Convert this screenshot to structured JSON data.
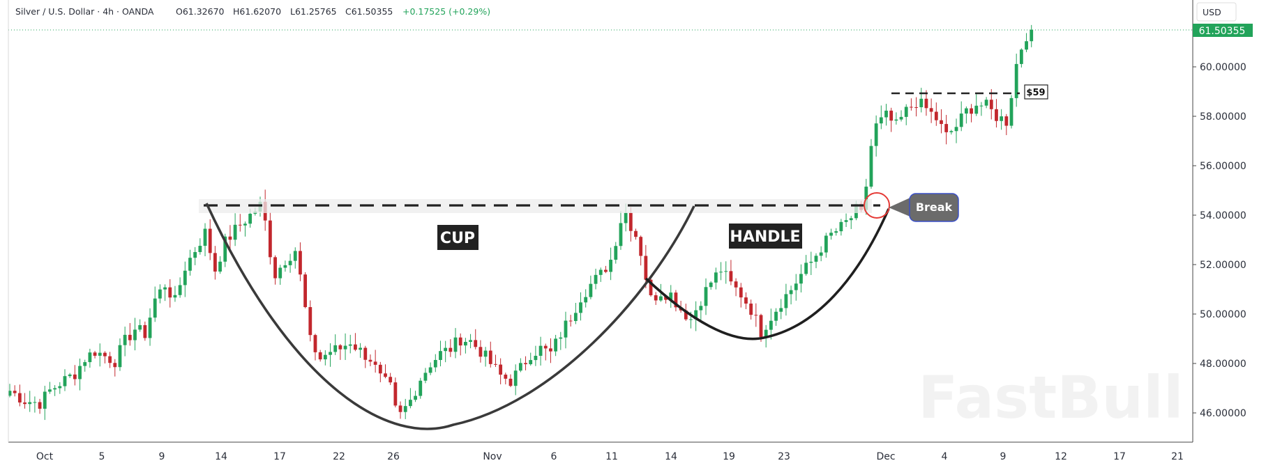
{
  "header": {
    "symbol": "Silver / U.S. Dollar · 4h · OANDA",
    "open": "O61.32670",
    "high": "H61.62070",
    "low": "L61.25765",
    "close": "C61.50355",
    "change": "+0.17525 (+0.29%)"
  },
  "currency_button": "USD",
  "watermark": "FastBull",
  "colors": {
    "up": "#22a35a",
    "down": "#c2272d",
    "price_tag": "#22a35a",
    "break_bubble": "#6b6b6b",
    "break_border": "#3b50c8",
    "annotation_bg": "#222222"
  },
  "chart_data": {
    "type": "candlestick",
    "instrument": "Silver / U.S. Dollar",
    "timeframe": "4h",
    "broker": "OANDA",
    "y_ticks": [
      "46.00000",
      "48.00000",
      "50.00000",
      "52.00000",
      "54.00000",
      "56.00000",
      "58.00000",
      "60.00000"
    ],
    "ylim": [
      44.8,
      62.4
    ],
    "x_ticks": [
      "Oct",
      "5",
      "9",
      "14",
      "17",
      "22",
      "26",
      "Nov",
      "6",
      "11",
      "14",
      "19",
      "23",
      "Dec",
      "4",
      "9",
      "12",
      "17",
      "21"
    ],
    "last_price": "61.50355",
    "approx_close_path": [
      [
        0,
        46.9
      ],
      [
        3,
        46.5
      ],
      [
        6,
        46.4
      ],
      [
        8,
        46.9
      ],
      [
        10,
        47.2
      ],
      [
        13,
        47.6
      ],
      [
        15,
        48.2
      ],
      [
        17,
        48.5
      ],
      [
        19,
        48.3
      ],
      [
        21,
        48.1
      ],
      [
        23,
        48.9
      ],
      [
        25,
        49.4
      ],
      [
        27,
        49.2
      ],
      [
        29,
        50.6
      ],
      [
        31,
        51.2
      ],
      [
        33,
        50.5
      ],
      [
        35,
        51.9
      ],
      [
        37,
        52.6
      ],
      [
        39,
        53.3
      ],
      [
        41,
        51.8
      ],
      [
        43,
        52.9
      ],
      [
        45,
        53.4
      ],
      [
        47,
        53.8
      ],
      [
        49,
        54.2
      ],
      [
        50,
        54.4
      ],
      [
        51,
        53.7
      ],
      [
        52,
        52.5
      ],
      [
        53,
        51.6
      ],
      [
        55,
        52.2
      ],
      [
        57,
        52.6
      ],
      [
        58,
        51.5
      ],
      [
        59,
        50.2
      ],
      [
        60,
        48.9
      ],
      [
        62,
        48.2
      ],
      [
        64,
        48.5
      ],
      [
        66,
        48.6
      ],
      [
        68,
        48.9
      ],
      [
        70,
        48.5
      ],
      [
        72,
        48.2
      ],
      [
        74,
        47.4
      ],
      [
        76,
        47.0
      ],
      [
        77,
        46.1
      ],
      [
        78,
        45.9
      ],
      [
        80,
        46.5
      ],
      [
        82,
        47.4
      ],
      [
        84,
        48.0
      ],
      [
        86,
        48.4
      ],
      [
        88,
        48.6
      ],
      [
        90,
        49.0
      ],
      [
        92,
        48.9
      ],
      [
        94,
        48.5
      ],
      [
        96,
        48.0
      ],
      [
        98,
        47.5
      ],
      [
        100,
        47.3
      ],
      [
        102,
        47.8
      ],
      [
        104,
        48.4
      ],
      [
        106,
        48.6
      ],
      [
        108,
        48.4
      ],
      [
        110,
        49.2
      ],
      [
        112,
        49.9
      ],
      [
        114,
        50.7
      ],
      [
        116,
        51.2
      ],
      [
        118,
        51.6
      ],
      [
        120,
        52.2
      ],
      [
        121,
        53.0
      ],
      [
        122,
        53.8
      ],
      [
        123,
        54.1
      ],
      [
        124,
        53.6
      ],
      [
        125,
        53.2
      ],
      [
        126,
        52.5
      ],
      [
        127,
        51.5
      ],
      [
        128,
        50.6
      ],
      [
        130,
        50.9
      ],
      [
        132,
        50.8
      ],
      [
        134,
        50.2
      ],
      [
        136,
        49.8
      ],
      [
        138,
        50.6
      ],
      [
        140,
        51.3
      ],
      [
        142,
        51.8
      ],
      [
        144,
        51.2
      ],
      [
        146,
        50.8
      ],
      [
        148,
        50.2
      ],
      [
        150,
        49.3
      ],
      [
        152,
        49.9
      ],
      [
        154,
        50.5
      ],
      [
        156,
        51.0
      ],
      [
        158,
        51.6
      ],
      [
        160,
        52.1
      ],
      [
        162,
        52.7
      ],
      [
        164,
        53.2
      ],
      [
        166,
        53.5
      ],
      [
        168,
        53.9
      ],
      [
        169,
        54.2
      ],
      [
        170,
        54.0
      ],
      [
        171,
        55.2
      ],
      [
        172,
        56.8
      ],
      [
        173,
        57.6
      ],
      [
        175,
        58.0
      ],
      [
        177,
        57.6
      ],
      [
        179,
        58.2
      ],
      [
        181,
        58.6
      ],
      [
        183,
        58.3
      ],
      [
        185,
        57.9
      ],
      [
        187,
        57.2
      ],
      [
        189,
        57.6
      ],
      [
        191,
        58.2
      ],
      [
        193,
        58.5
      ],
      [
        195,
        58.4
      ],
      [
        197,
        58.0
      ],
      [
        199,
        57.8
      ],
      [
        200,
        58.9
      ],
      [
        201,
        60.1
      ],
      [
        202,
        60.8
      ],
      [
        203,
        61.3
      ],
      [
        204,
        61.5
      ]
    ],
    "annotations": [
      {
        "label": "CUP"
      },
      {
        "label": "HANDLE"
      },
      {
        "label": "Break"
      },
      {
        "label": "$59"
      }
    ]
  }
}
